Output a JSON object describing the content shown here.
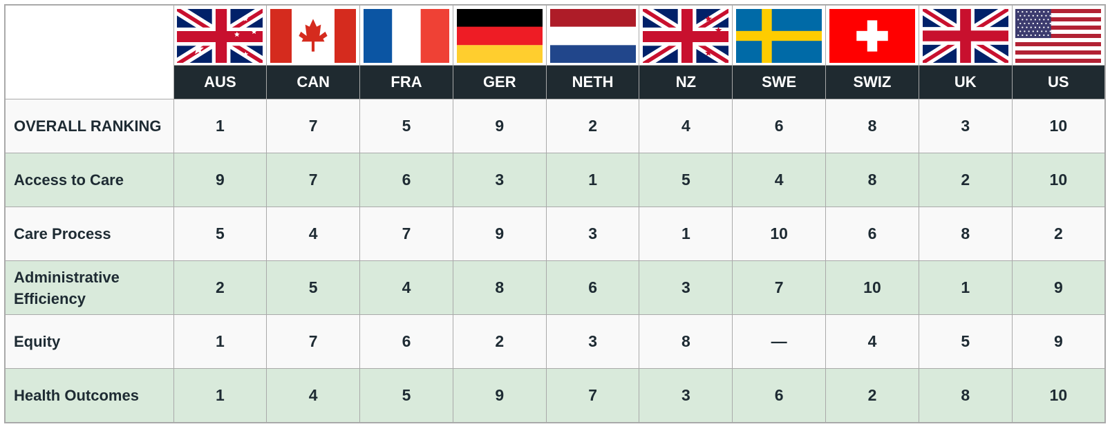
{
  "table": {
    "columns": [
      "AUS",
      "CAN",
      "FRA",
      "GER",
      "NETH",
      "NZ",
      "SWE",
      "SWIZ",
      "UK",
      "US"
    ],
    "rows": [
      {
        "label": "OVERALL RANKING",
        "values": [
          1,
          7,
          5,
          9,
          2,
          4,
          6,
          8,
          3,
          10
        ]
      },
      {
        "label": "Access to Care",
        "values": [
          9,
          7,
          6,
          3,
          1,
          5,
          4,
          8,
          2,
          10
        ]
      },
      {
        "label": "Care Process",
        "values": [
          5,
          4,
          7,
          9,
          3,
          1,
          10,
          6,
          8,
          2
        ]
      },
      {
        "label": "Administrative Efficiency",
        "values": [
          2,
          5,
          4,
          8,
          6,
          3,
          7,
          10,
          1,
          9
        ]
      },
      {
        "label": "Equity",
        "values": [
          1,
          7,
          6,
          2,
          3,
          8,
          "—",
          4,
          5,
          9
        ]
      },
      {
        "label": "Health Outcomes",
        "values": [
          1,
          4,
          5,
          9,
          7,
          3,
          6,
          2,
          8,
          10
        ]
      }
    ]
  }
}
